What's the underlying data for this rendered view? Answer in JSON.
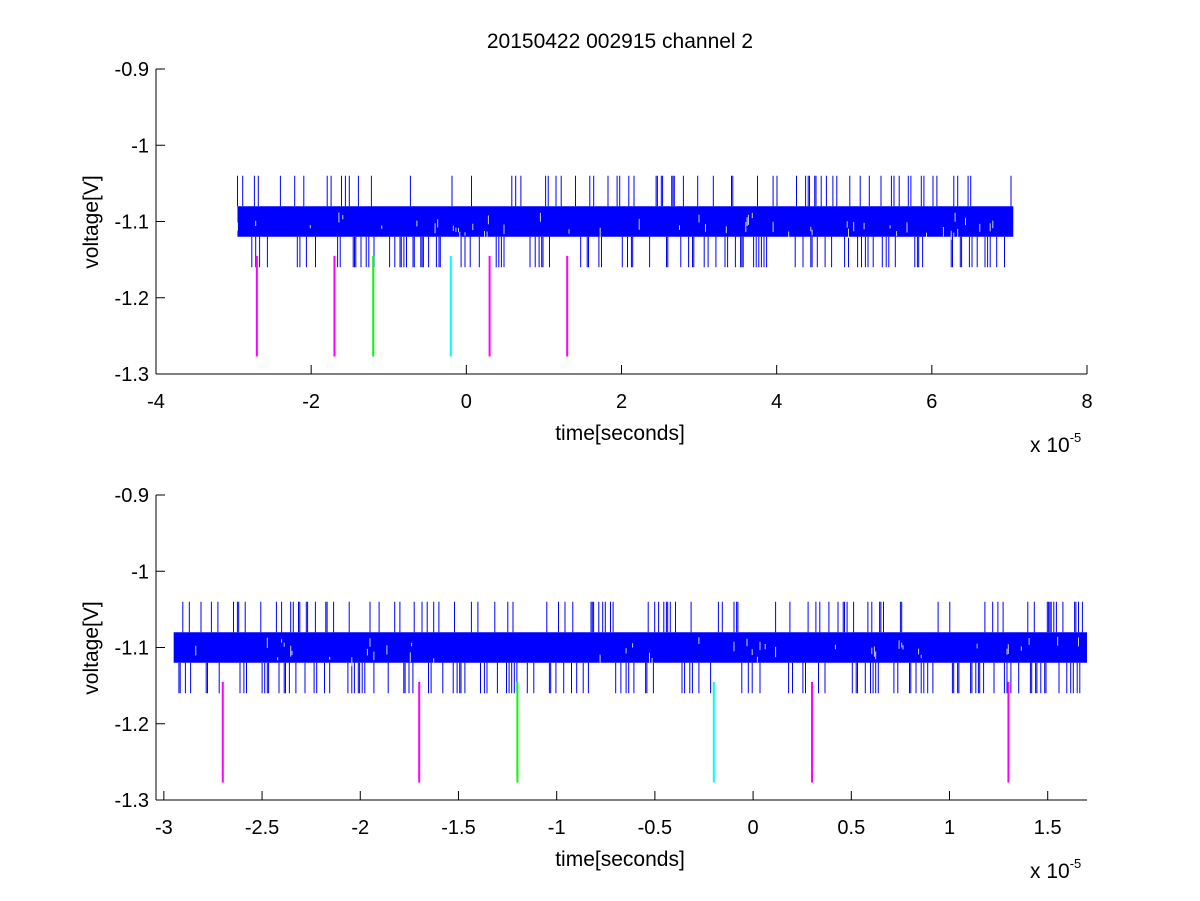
{
  "chart_data": [
    {
      "type": "line",
      "title": "20150422 002915 channel 2",
      "xlabel": "time[seconds]",
      "ylabel": "voltage[V]",
      "x_multiplier": "x 10",
      "x_multiplier_exponent": "-5",
      "xlim": [
        -4,
        8
      ],
      "ylim": [
        -1.3,
        -0.9
      ],
      "xticks": [
        -4,
        -2,
        0,
        2,
        4,
        6,
        8
      ],
      "xtick_labels": [
        "-4",
        "-2",
        "0",
        "2",
        "4",
        "6",
        "8"
      ],
      "yticks": [
        -0.9,
        -1.0,
        -1.1,
        -1.2,
        -1.3
      ],
      "ytick_labels": [
        "-0.9",
        "-1",
        "-1.1",
        "-1.2",
        "-1.3"
      ],
      "grid": false,
      "series": [
        {
          "color": "#0000ff",
          "x_range": [
            -2.95,
            7.05
          ],
          "band": [
            -1.12,
            -1.08
          ],
          "spike_levels": [
            -1.04,
            -1.16
          ],
          "baseline": -1.1
        }
      ],
      "markers": [
        {
          "x": -2.7,
          "color": "#ff00ff",
          "y_range": [
            -1.277,
            -1.145
          ]
        },
        {
          "x": -1.7,
          "color": "#ff00ff",
          "y_range": [
            -1.277,
            -1.145
          ]
        },
        {
          "x": -1.2,
          "color": "#00ff00",
          "y_range": [
            -1.277,
            -1.145
          ]
        },
        {
          "x": -0.2,
          "color": "#00ffff",
          "y_range": [
            -1.277,
            -1.145
          ]
        },
        {
          "x": 0.3,
          "color": "#ff00ff",
          "y_range": [
            -1.277,
            -1.145
          ]
        },
        {
          "x": 1.3,
          "color": "#ff00ff",
          "y_range": [
            -1.277,
            -1.145
          ]
        }
      ]
    },
    {
      "type": "line",
      "title": "",
      "xlabel": "time[seconds]",
      "ylabel": "voltage[V]",
      "x_multiplier": "x 10",
      "x_multiplier_exponent": "-5",
      "xlim": [
        -3.04,
        1.7
      ],
      "ylim": [
        -1.3,
        -0.9
      ],
      "xticks": [
        -3,
        -2.5,
        -2,
        -1.5,
        -1,
        -0.5,
        0,
        0.5,
        1,
        1.5
      ],
      "xtick_labels": [
        "-3",
        "-2.5",
        "-2",
        "-1.5",
        "-1",
        "-0.5",
        "0",
        "0.5",
        "1",
        "1.5"
      ],
      "yticks": [
        -0.9,
        -1.0,
        -1.1,
        -1.2,
        -1.3
      ],
      "ytick_labels": [
        "-0.9",
        "-1",
        "-1.1",
        "-1.2",
        "-1.3"
      ],
      "grid": false,
      "series": [
        {
          "color": "#0000ff",
          "x_range": [
            -2.95,
            1.7
          ],
          "band": [
            -1.12,
            -1.08
          ],
          "spike_levels": [
            -1.04,
            -1.16
          ],
          "baseline": -1.1
        }
      ],
      "markers": [
        {
          "x": -2.7,
          "color": "#ff00ff",
          "y_range": [
            -1.277,
            -1.145
          ]
        },
        {
          "x": -1.7,
          "color": "#ff00ff",
          "y_range": [
            -1.277,
            -1.145
          ]
        },
        {
          "x": -1.2,
          "color": "#00ff00",
          "y_range": [
            -1.277,
            -1.145
          ]
        },
        {
          "x": -0.2,
          "color": "#00ffff",
          "y_range": [
            -1.277,
            -1.145
          ]
        },
        {
          "x": 0.3,
          "color": "#ff00ff",
          "y_range": [
            -1.277,
            -1.145
          ]
        },
        {
          "x": 1.3,
          "color": "#ff00ff",
          "y_range": [
            -1.277,
            -1.145
          ]
        }
      ]
    }
  ]
}
